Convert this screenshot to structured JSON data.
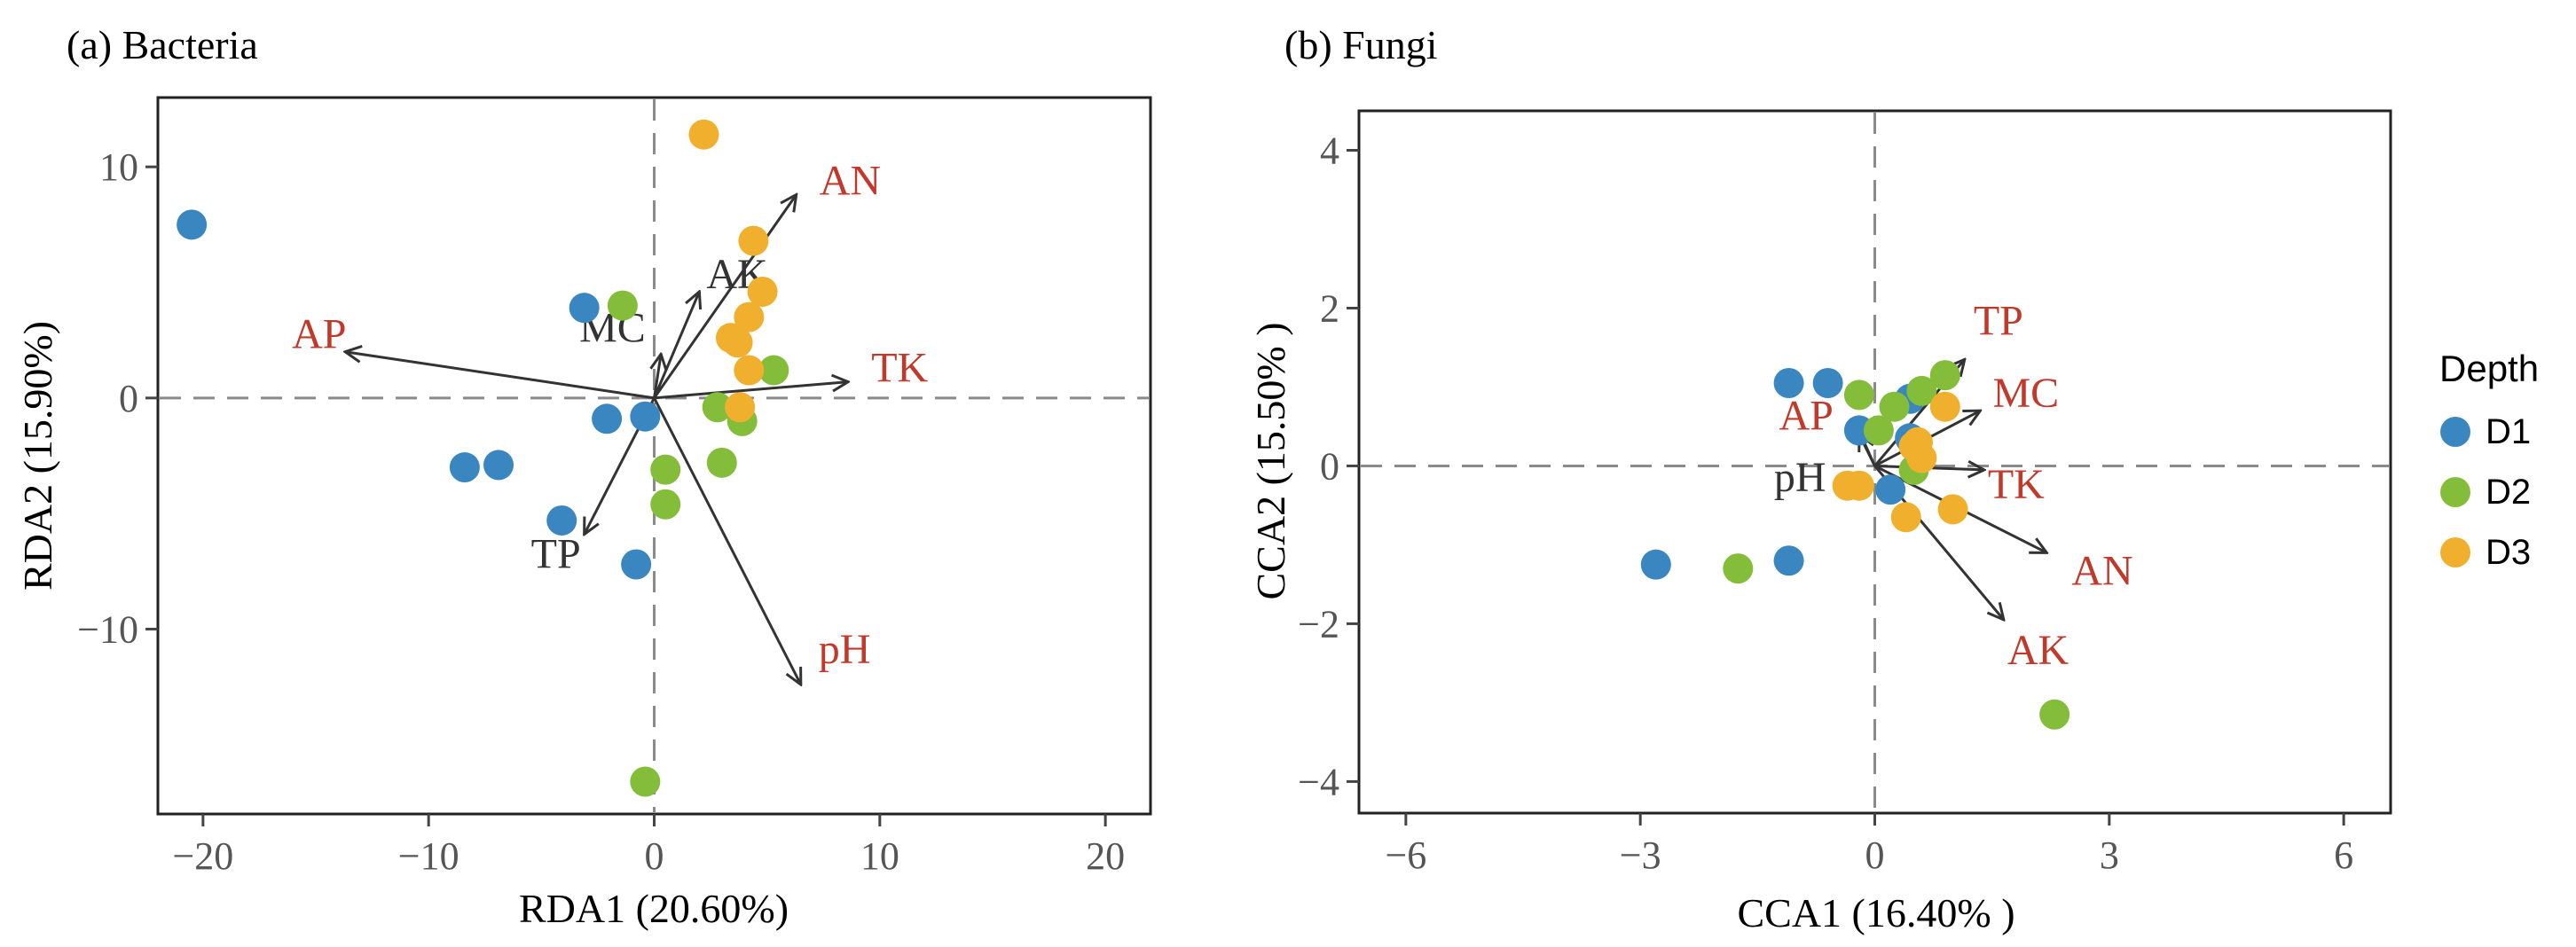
{
  "chart_data": [
    {
      "type": "scatter",
      "panel_label": "(a) Bacteria",
      "xlabel": "RDA1 (20.60%)",
      "ylabel": "RDA2 (15.90%)",
      "xlim": [
        -22,
        22
      ],
      "ylim": [
        -18,
        13
      ],
      "xticks": [
        -20,
        -10,
        0,
        10,
        20
      ],
      "xtick_labels": [
        "−20",
        "−10",
        "0",
        "10",
        "20"
      ],
      "yticks": [
        10,
        0,
        -10
      ],
      "ytick_labels": [
        "10",
        "0",
        "−10"
      ],
      "reference_lines": {
        "x": 0,
        "y": 0,
        "style": "dashed"
      },
      "series": [
        {
          "name": "D1",
          "points": [
            [
              -20.5,
              7.5
            ],
            [
              -3.1,
              3.9
            ],
            [
              -8.4,
              -3.0
            ],
            [
              -6.9,
              -2.9
            ],
            [
              -2.1,
              -0.9
            ],
            [
              -0.4,
              -0.8
            ],
            [
              -4.1,
              -5.3
            ],
            [
              -0.8,
              -7.2
            ]
          ]
        },
        {
          "name": "D2",
          "points": [
            [
              -1.4,
              4.0
            ],
            [
              5.3,
              1.2
            ],
            [
              2.8,
              -0.4
            ],
            [
              3.9,
              -1.0
            ],
            [
              0.5,
              -3.1
            ],
            [
              3.0,
              -2.8
            ],
            [
              0.5,
              -4.6
            ],
            [
              -0.4,
              -16.6
            ]
          ]
        },
        {
          "name": "D3",
          "points": [
            [
              2.2,
              11.4
            ],
            [
              4.4,
              6.8
            ],
            [
              4.8,
              4.6
            ],
            [
              4.2,
              3.5
            ],
            [
              3.4,
              2.6
            ],
            [
              3.7,
              2.4
            ],
            [
              4.2,
              1.2
            ],
            [
              3.8,
              -0.4
            ]
          ]
        }
      ],
      "vectors": [
        {
          "name": "AN",
          "x": 6.3,
          "y": 8.8,
          "color": "#c0392b"
        },
        {
          "name": "AK",
          "x": 2.0,
          "y": 4.6,
          "color": "#333333"
        },
        {
          "name": "MC",
          "x": 0.3,
          "y": 1.9,
          "color": "#333333"
        },
        {
          "name": "AP",
          "x": -13.7,
          "y": 2.0,
          "color": "#c0392b"
        },
        {
          "name": "TK",
          "x": 8.6,
          "y": 0.7,
          "color": "#c0392b"
        },
        {
          "name": "TP",
          "x": -3.1,
          "y": -5.9,
          "color": "#333333"
        },
        {
          "name": "pH",
          "x": 6.5,
          "y": -12.4,
          "color": "#c0392b"
        }
      ]
    },
    {
      "type": "scatter",
      "panel_label": "(b)  Fungi",
      "xlabel": "CCA1 (16.40% )",
      "ylabel": "CCA2 (15.50% )",
      "xlim": [
        -6.6,
        6.6
      ],
      "ylim": [
        -4.4,
        4.5
      ],
      "xticks": [
        -6,
        -3,
        0,
        3,
        6
      ],
      "xtick_labels": [
        "−6",
        "−3",
        "0",
        "3",
        "6"
      ],
      "yticks": [
        4,
        2,
        0,
        -2,
        -4
      ],
      "ytick_labels": [
        "4",
        "2",
        "0",
        "−2",
        "−4"
      ],
      "reference_lines": {
        "x": 0,
        "y": 0,
        "style": "dashed"
      },
      "series": [
        {
          "name": "D1",
          "points": [
            [
              -1.1,
              1.05
            ],
            [
              -0.6,
              1.05
            ],
            [
              0.45,
              0.85
            ],
            [
              -0.2,
              0.45
            ],
            [
              0.45,
              0.35
            ],
            [
              0.2,
              -0.3
            ],
            [
              -2.8,
              -1.25
            ],
            [
              -1.1,
              -1.2
            ]
          ]
        },
        {
          "name": "D2",
          "points": [
            [
              -0.2,
              0.9
            ],
            [
              0.9,
              1.15
            ],
            [
              0.6,
              0.95
            ],
            [
              0.25,
              0.75
            ],
            [
              0.05,
              0.45
            ],
            [
              0.5,
              -0.05
            ],
            [
              -1.75,
              -1.3
            ],
            [
              2.3,
              -3.15
            ]
          ]
        },
        {
          "name": "D3",
          "points": [
            [
              0.9,
              0.75
            ],
            [
              0.5,
              0.25
            ],
            [
              0.6,
              0.1
            ],
            [
              -0.35,
              -0.25
            ],
            [
              -0.2,
              -0.25
            ],
            [
              1.0,
              -0.55
            ],
            [
              0.4,
              -0.65
            ],
            [
              0.55,
              0.3
            ]
          ]
        }
      ],
      "vectors": [
        {
          "name": "TP",
          "x": 1.15,
          "y": 1.35,
          "color": "#c0392b"
        },
        {
          "name": "MC",
          "x": 1.35,
          "y": 0.7,
          "color": "#c0392b"
        },
        {
          "name": "AP",
          "x": -0.25,
          "y": 0.55,
          "color": "#c0392b"
        },
        {
          "name": "pH",
          "x": -0.2,
          "y": 0.4,
          "color": "#333333"
        },
        {
          "name": "TK",
          "x": 1.4,
          "y": -0.05,
          "color": "#c0392b"
        },
        {
          "name": "AN",
          "x": 2.2,
          "y": -1.1,
          "color": "#c0392b"
        },
        {
          "name": "AK",
          "x": 1.65,
          "y": -1.95,
          "color": "#c0392b"
        }
      ]
    }
  ],
  "legend": {
    "title": "Depth",
    "entries": [
      {
        "name": "D1",
        "color": "#3a86c0"
      },
      {
        "name": "D2",
        "color": "#83bd3a"
      },
      {
        "name": "D3",
        "color": "#f0b02e"
      }
    ]
  }
}
